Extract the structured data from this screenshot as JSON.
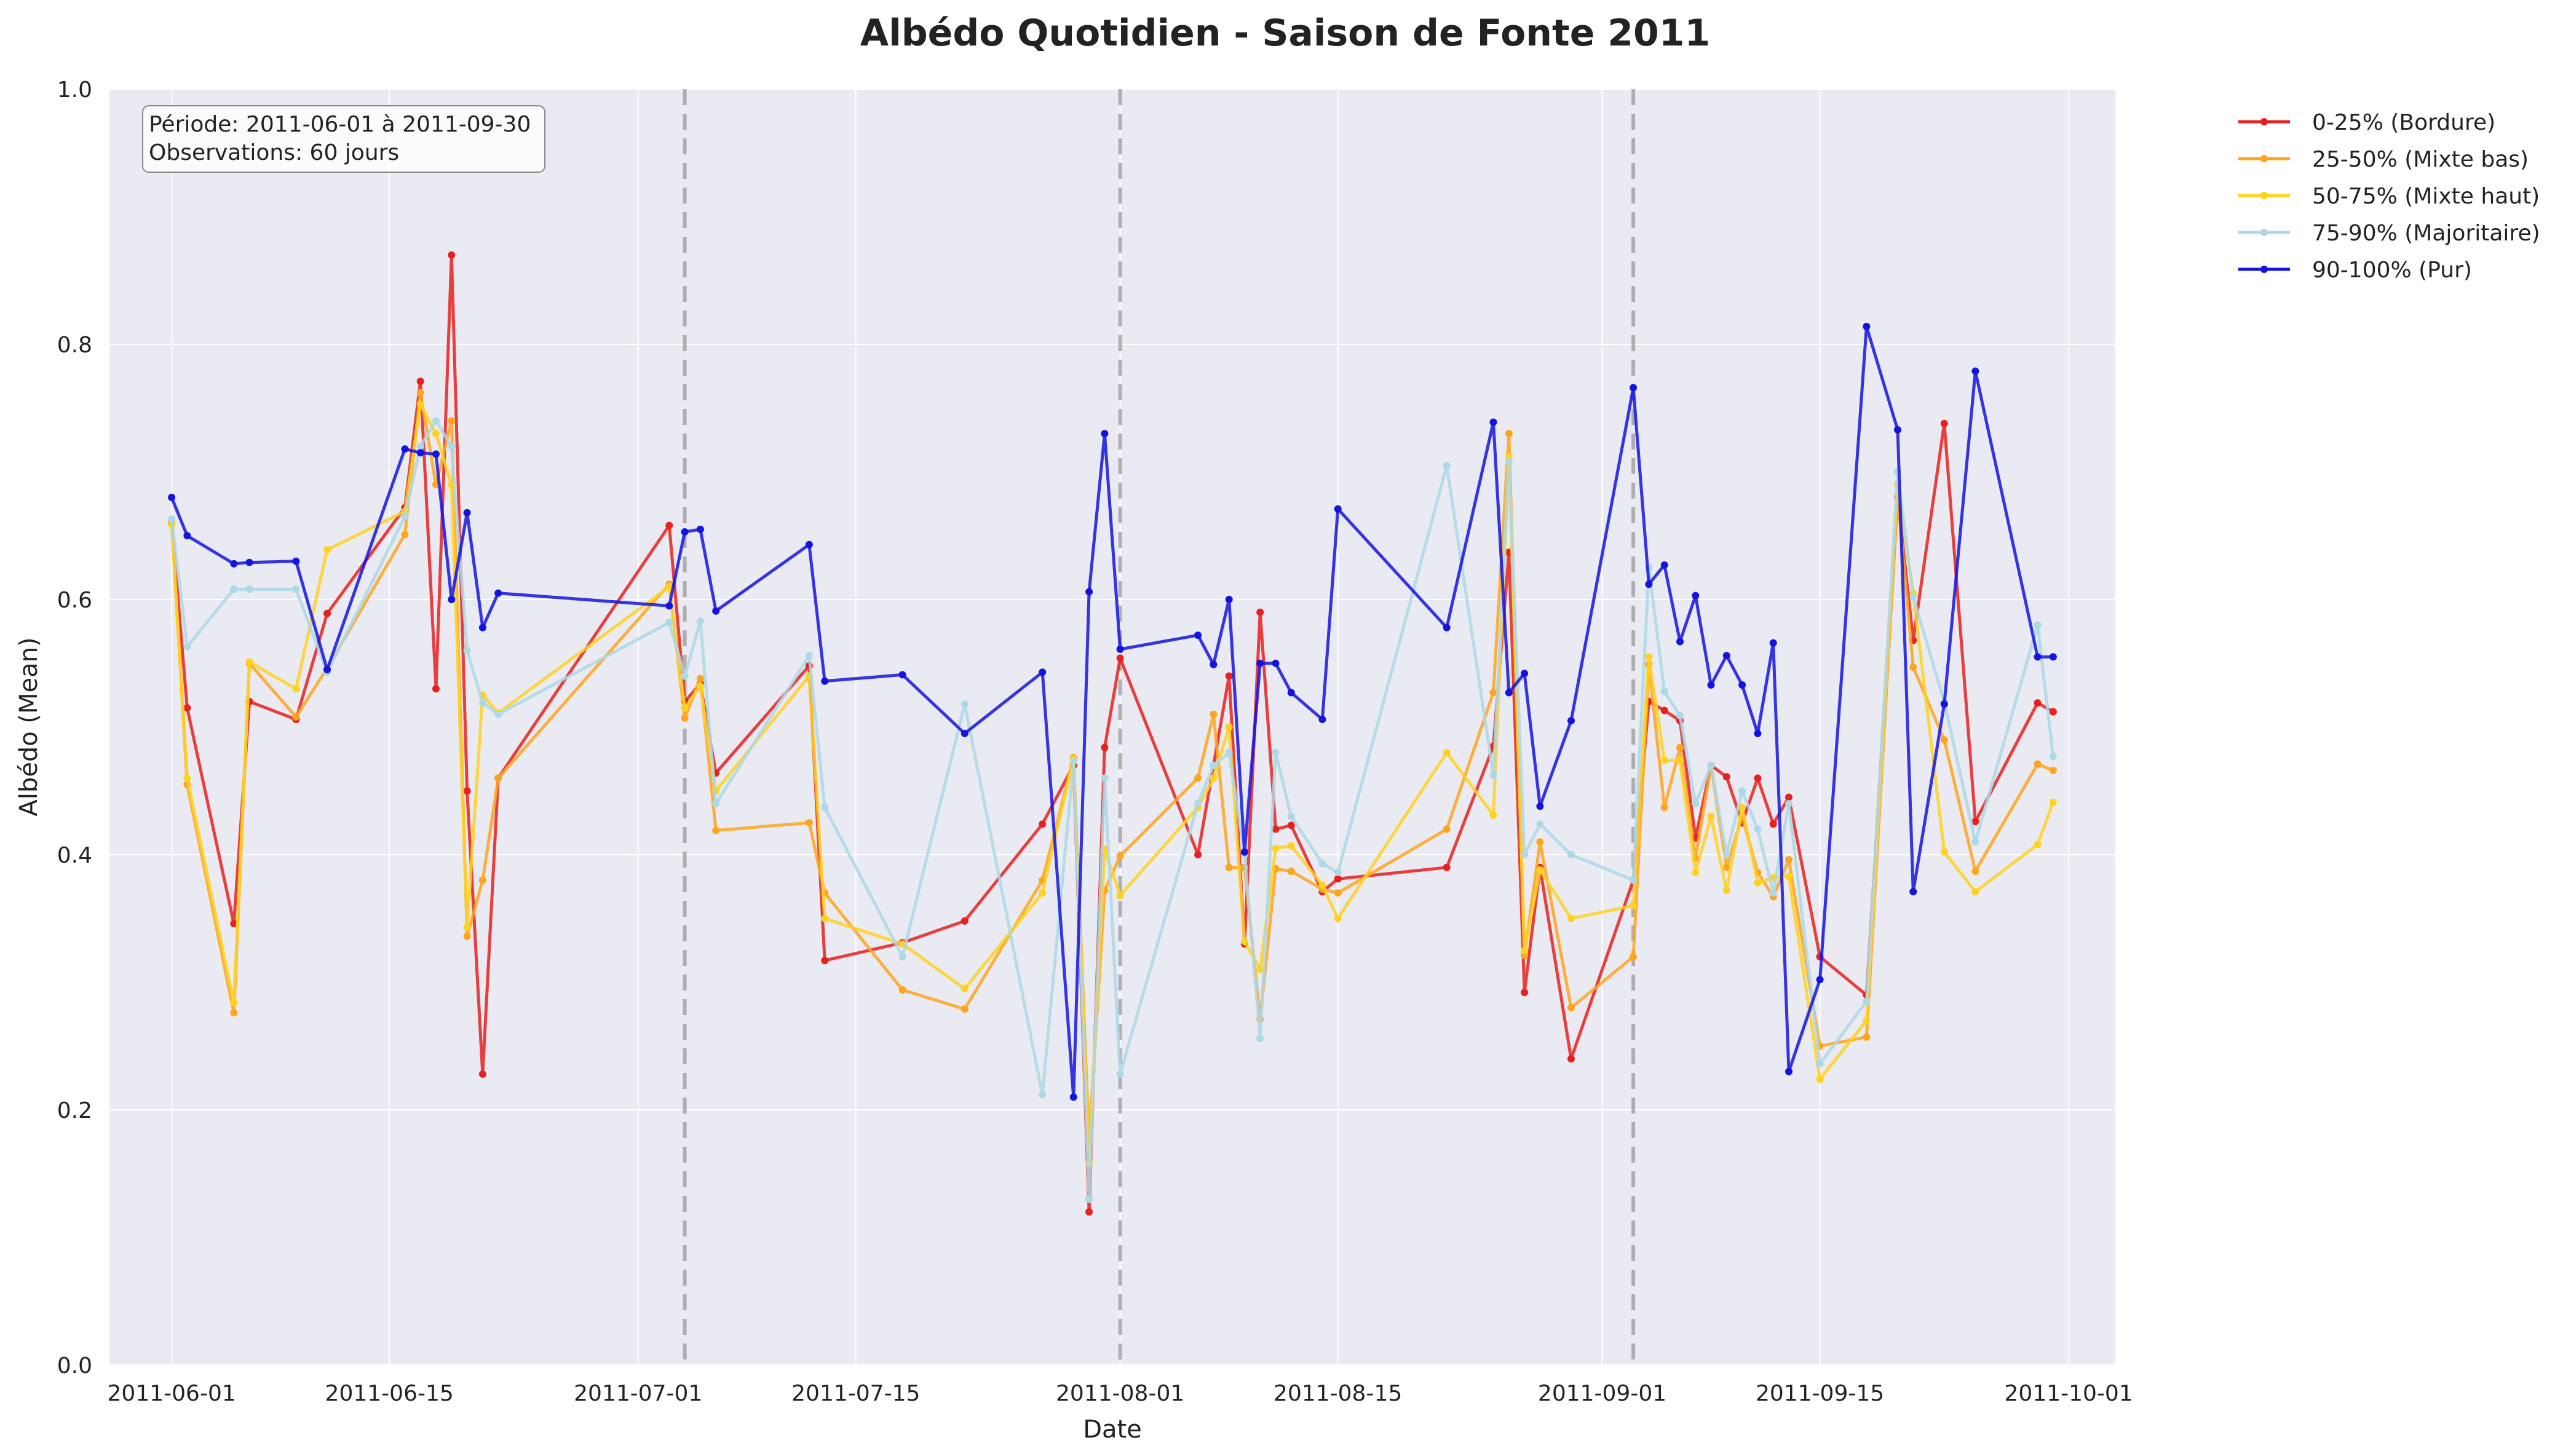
{
  "chart_data": {
    "type": "line",
    "title": "Albédo Quotidien - Saison de Fonte 2011",
    "xlabel": "Date",
    "ylabel": "Albédo (Mean)",
    "ylim": [
      0.0,
      1.0
    ],
    "xlim": [
      "2011-05-28",
      "2011-10-04"
    ],
    "y_ticks": [
      "0.0",
      "0.2",
      "0.4",
      "0.6",
      "0.8",
      "1.0"
    ],
    "x_ticks": [
      "2011-06-01",
      "2011-06-15",
      "2011-07-01",
      "2011-07-15",
      "2011-08-01",
      "2011-08-15",
      "2011-09-01",
      "2011-09-15",
      "2011-10-01"
    ],
    "grid": true,
    "legend_position": "outside-top-right",
    "info_box": {
      "line1": "Période: 2011-06-01 à 2011-09-30",
      "line2": "Observations: 60 jours"
    },
    "vertical_reference_lines": [
      "2011-07-04",
      "2011-08-01",
      "2011-09-03"
    ],
    "x_dates": [
      "2011-06-01",
      "2011-06-02",
      "2011-06-05",
      "2011-06-06",
      "2011-06-09",
      "2011-06-11",
      "2011-06-16",
      "2011-06-17",
      "2011-06-18",
      "2011-06-19",
      "2011-06-20",
      "2011-06-21",
      "2011-06-22",
      "2011-07-03",
      "2011-07-04",
      "2011-07-05",
      "2011-07-06",
      "2011-07-12",
      "2011-07-13",
      "2011-07-18",
      "2011-07-22",
      "2011-07-27",
      "2011-07-29",
      "2011-07-30",
      "2011-07-31",
      "2011-08-01",
      "2011-08-06",
      "2011-08-07",
      "2011-08-08",
      "2011-08-09",
      "2011-08-10",
      "2011-08-11",
      "2011-08-12",
      "2011-08-14",
      "2011-08-15",
      "2011-08-22",
      "2011-08-25",
      "2011-08-26",
      "2011-08-27",
      "2011-08-28",
      "2011-08-30",
      "2011-09-03",
      "2011-09-04",
      "2011-09-05",
      "2011-09-06",
      "2011-09-07",
      "2011-09-08",
      "2011-09-09",
      "2011-09-10",
      "2011-09-11",
      "2011-09-12",
      "2011-09-13",
      "2011-09-15",
      "2011-09-18",
      "2011-09-20",
      "2011-09-21",
      "2011-09-23",
      "2011-09-25",
      "2011-09-29",
      "2011-09-30"
    ],
    "series": [
      {
        "name": "0-25% (Bordure)",
        "color": "#e8201f",
        "values": [
          0.66,
          0.515,
          0.346,
          0.52,
          0.506,
          0.589,
          0.672,
          0.771,
          0.53,
          0.87,
          0.45,
          0.228,
          0.46,
          0.658,
          0.52,
          0.534,
          0.464,
          0.548,
          0.317,
          0.331,
          0.348,
          0.424,
          0.47,
          0.12,
          0.484,
          0.554,
          0.4,
          0.47,
          0.54,
          0.33,
          0.59,
          0.42,
          0.423,
          0.371,
          0.381,
          0.39,
          0.485,
          0.637,
          0.292,
          0.39,
          0.24,
          0.38,
          0.52,
          0.513,
          0.505,
          0.413,
          0.47,
          0.461,
          0.425,
          0.46,
          0.424,
          0.445,
          0.32,
          0.29,
          0.68,
          0.568,
          0.738,
          0.426,
          0.519,
          0.512
        ]
      },
      {
        "name": "25-50% (Mixte bas)",
        "color": "#ffa51d",
        "values": [
          0.661,
          0.455,
          0.276,
          0.55,
          0.508,
          0.546,
          0.651,
          0.762,
          0.69,
          0.74,
          0.336,
          0.38,
          0.46,
          0.612,
          0.507,
          0.538,
          0.419,
          0.425,
          0.37,
          0.294,
          0.279,
          0.38,
          0.476,
          0.175,
          0.372,
          0.399,
          0.46,
          0.51,
          0.39,
          0.39,
          0.271,
          0.389,
          0.387,
          0.373,
          0.37,
          0.42,
          0.527,
          0.73,
          0.321,
          0.41,
          0.28,
          0.32,
          0.549,
          0.437,
          0.484,
          0.397,
          0.47,
          0.39,
          0.43,
          0.386,
          0.367,
          0.396,
          0.25,
          0.257,
          0.681,
          0.547,
          0.49,
          0.387,
          0.471,
          0.466
        ]
      },
      {
        "name": "50-75% (Mixte haut)",
        "color": "#ffd21f",
        "values": [
          0.659,
          0.46,
          0.284,
          0.551,
          0.53,
          0.639,
          0.669,
          0.753,
          0.73,
          0.69,
          0.343,
          0.525,
          0.511,
          0.61,
          0.515,
          0.532,
          0.45,
          0.54,
          0.35,
          0.33,
          0.295,
          0.37,
          0.475,
          0.158,
          0.404,
          0.368,
          0.437,
          0.46,
          0.5,
          0.332,
          0.31,
          0.405,
          0.407,
          0.376,
          0.35,
          0.48,
          0.431,
          0.712,
          0.325,
          0.388,
          0.35,
          0.36,
          0.555,
          0.474,
          0.474,
          0.386,
          0.43,
          0.372,
          0.437,
          0.378,
          0.382,
          0.383,
          0.224,
          0.27,
          0.69,
          0.605,
          0.402,
          0.371,
          0.408,
          0.441
        ]
      },
      {
        "name": "75-90% (Majoritaire)",
        "color": "#add8e6",
        "values": [
          0.663,
          0.563,
          0.608,
          0.608,
          0.608,
          0.543,
          0.665,
          0.72,
          0.74,
          0.72,
          0.56,
          0.519,
          0.51,
          0.582,
          0.54,
          0.583,
          0.44,
          0.556,
          0.437,
          0.32,
          0.518,
          0.212,
          0.473,
          0.13,
          0.46,
          0.228,
          0.44,
          0.47,
          0.48,
          0.4,
          0.256,
          0.48,
          0.43,
          0.393,
          0.386,
          0.705,
          0.462,
          0.708,
          0.4,
          0.424,
          0.4,
          0.38,
          0.625,
          0.528,
          0.509,
          0.44,
          0.47,
          0.4,
          0.45,
          0.42,
          0.37,
          0.44,
          0.236,
          0.285,
          0.7,
          0.602,
          0.52,
          0.41,
          0.58,
          0.477
        ]
      },
      {
        "name": "90-100% (Pur)",
        "color": "#1414e0",
        "values": [
          0.68,
          0.65,
          0.628,
          0.629,
          0.63,
          0.545,
          0.718,
          0.715,
          0.714,
          0.6,
          0.668,
          0.578,
          0.605,
          0.595,
          0.653,
          0.655,
          0.591,
          0.643,
          0.536,
          0.541,
          0.495,
          0.543,
          0.21,
          0.606,
          0.73,
          0.561,
          0.572,
          0.549,
          0.6,
          0.402,
          0.55,
          0.55,
          0.527,
          0.506,
          0.671,
          0.578,
          0.739,
          0.527,
          0.542,
          0.438,
          0.505,
          0.766,
          0.612,
          0.627,
          0.567,
          0.603,
          0.533,
          0.556,
          0.533,
          0.495,
          0.566,
          0.23,
          0.302,
          0.814,
          0.733,
          0.371,
          0.518,
          0.779,
          0.555,
          0.555
        ]
      }
    ]
  }
}
